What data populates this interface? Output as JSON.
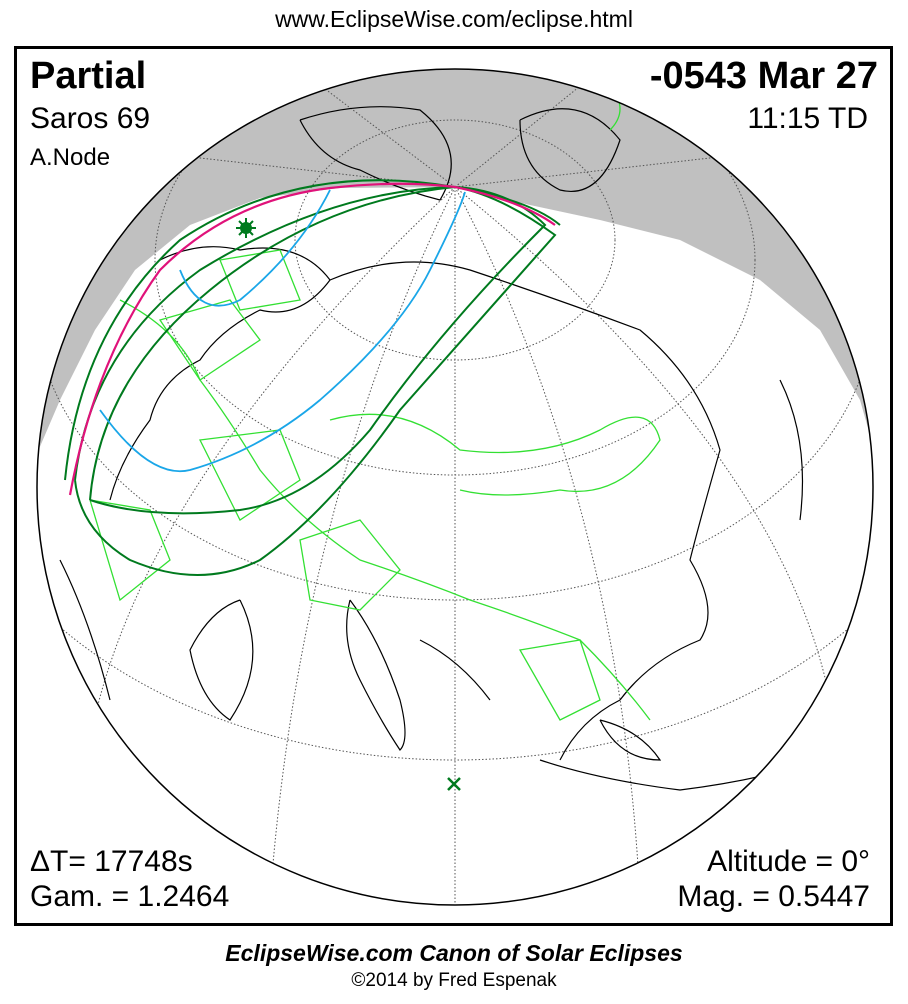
{
  "header_url": "www.EclipseWise.com/eclipse.html",
  "eclipse": {
    "type": "Partial",
    "date": "-0543 Mar 27",
    "saros": "Saros  69",
    "time": "11:15 TD",
    "node": "A.Node",
    "delta_t": "ΔT=  17748s",
    "gamma": "Gam. = 1.2464",
    "altitude": "Altitude =  0°",
    "magnitude": "Mag. = 0.5447"
  },
  "footer": {
    "title": "EclipseWise.com Canon of Solar Eclipses",
    "copyright": "©2014 by Fred Espenak"
  },
  "colors": {
    "night_shadow": "#c0c0c0",
    "penumbra_limit": "#007a1e",
    "max_eclipse_sunrise": "#e0127a",
    "contact_curve": "#1aa6e8",
    "borders": "#33e033",
    "coastlines": "#000000"
  },
  "markers": {
    "greatest_eclipse_icon": "star-icon",
    "sub_solar_point_icon": "x-mark-icon"
  }
}
